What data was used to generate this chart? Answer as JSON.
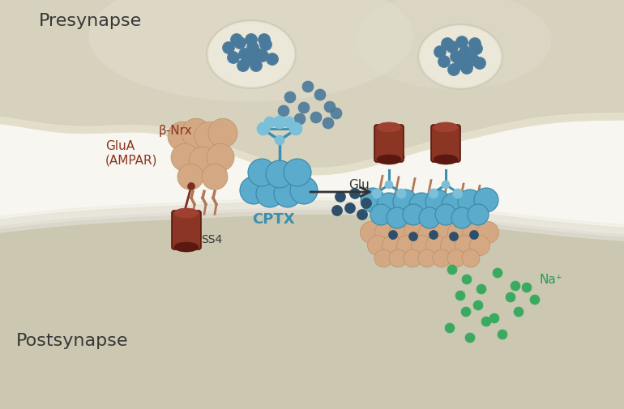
{
  "bg_color": "#ffffff",
  "presynapse_color": "#d6d2bd",
  "presynapse_edge": "#c8c4ae",
  "postsynapse_color": "#cbc7b0",
  "postsynapse_edge": "#bbb7a0",
  "presynapse_label": "Presynapse",
  "postsynapse_label": "Postsynapse",
  "beta_nrx_label": "β-Nrx",
  "ss4_label": "SS4",
  "cptx_label": "CPTX",
  "glua_label": "GluA\n(AMPAR)",
  "glu_label": "Glu",
  "na_label": "Na⁺",
  "vesicle_bg": "#e8e4d2",
  "vesicle_color": "#4a7a9b",
  "nrx_rope_color": "#7a3020",
  "nrx_rod_color": "#8b3525",
  "nrx_rod_dark": "#5a1810",
  "nrx_rod_light": "#a04030",
  "ampar_color": "#d4a882",
  "ampar_dark": "#b8906a",
  "ampar_stalk": "#b07858",
  "cptx_blue": "#5aabcc",
  "cptx_light": "#7ac0d8",
  "cptx_connector": "#3a8fb0",
  "dark_blue_dot": "#2d4f6b",
  "green_dot": "#3aaa60",
  "label_brown": "#8b3520",
  "label_blue": "#3a8fb0",
  "label_dark": "#383838",
  "label_green": "#2a9a58",
  "synaptic_cleft_color": "#f8f6f0"
}
